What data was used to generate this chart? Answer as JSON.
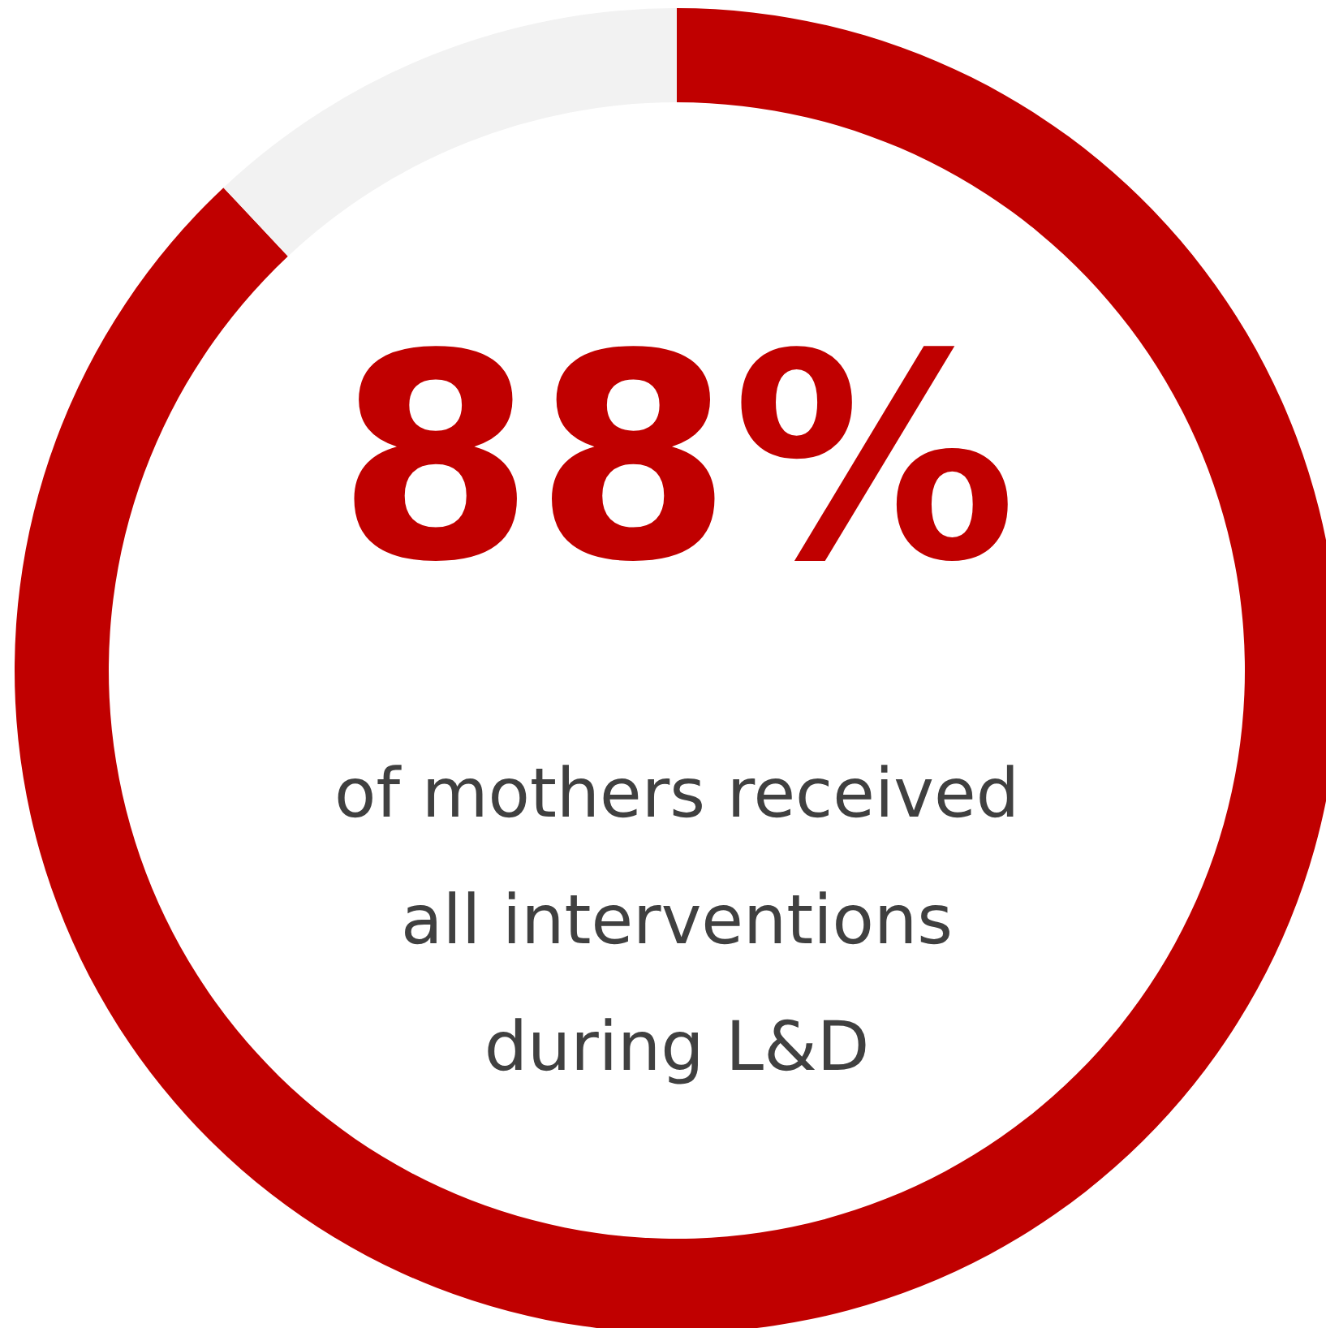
{
  "chart_data": {
    "type": "donut",
    "categories": [
      null,
      null
    ],
    "values": [
      88,
      12
    ],
    "colors": [
      "#c00000",
      "#f2f2f2"
    ],
    "value_labels": [
      "88%",
      null
    ],
    "annotations": [
      "of mothers received all interventions during L&D"
    ]
  }
}
